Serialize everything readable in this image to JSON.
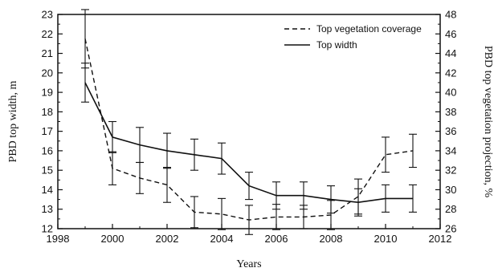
{
  "chart_data": {
    "type": "line",
    "xlabel": "Years",
    "ylabel": "PBD top width, m",
    "y2label": "PBD top vegetation projection, %",
    "xlim": [
      1998,
      2012
    ],
    "xticks": [
      1998,
      2000,
      2002,
      2004,
      2006,
      2008,
      2010,
      2012
    ],
    "ylim": [
      12,
      23
    ],
    "yticks": [
      12,
      13,
      14,
      15,
      16,
      17,
      18,
      19,
      20,
      21,
      22,
      23
    ],
    "y2lim": [
      26,
      48
    ],
    "y2ticks": [
      26,
      28,
      30,
      32,
      34,
      36,
      38,
      40,
      42,
      44,
      46,
      48
    ],
    "legend": "top-right",
    "grid": false,
    "series": [
      {
        "name": "Top vegetation coverage",
        "axis": "right",
        "style": "dashed",
        "x": [
          1999,
          2000,
          2001,
          2002,
          2003,
          2004,
          2005,
          2006,
          2007,
          2008,
          2009,
          2010,
          2011
        ],
        "y": [
          45.5,
          32.2,
          31.2,
          30.5,
          27.7,
          27.5,
          26.9,
          27.2,
          27.2,
          27.4,
          29.3,
          33.6,
          34.0
        ],
        "err": [
          3.0,
          1.7,
          1.6,
          1.8,
          1.6,
          1.6,
          1.5,
          1.3,
          1.2,
          1.5,
          1.8,
          1.8,
          1.7
        ]
      },
      {
        "name": "Top width",
        "axis": "left",
        "style": "solid",
        "x": [
          1999,
          2000,
          2001,
          2002,
          2003,
          2004,
          2005,
          2006,
          2007,
          2008,
          2009,
          2010,
          2011
        ],
        "y": [
          19.5,
          16.7,
          16.3,
          16.0,
          15.8,
          15.6,
          14.2,
          13.7,
          13.7,
          13.5,
          13.35,
          13.55,
          13.55
        ],
        "err": [
          1.0,
          0.8,
          0.9,
          0.9,
          0.8,
          0.8,
          0.7,
          0.7,
          0.7,
          0.7,
          0.7,
          0.7,
          0.7
        ]
      }
    ]
  }
}
